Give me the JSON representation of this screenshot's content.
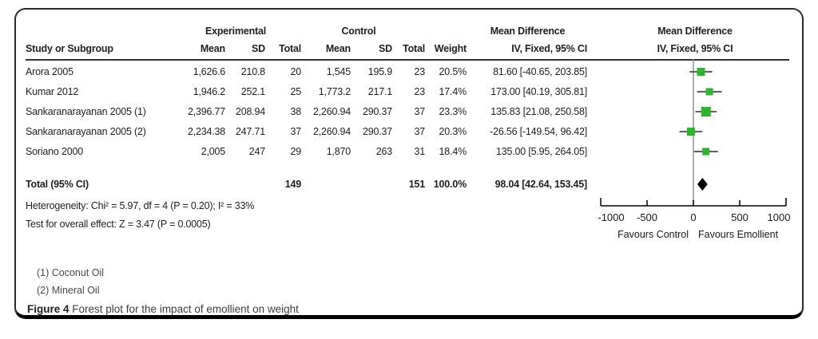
{
  "figure": {
    "caption_label": "Figure 4",
    "caption_text": " Forest plot for the impact of emollient on weight"
  },
  "table": {
    "group_headers": {
      "experimental": "Experimental",
      "control": "Control",
      "md_table": "Mean Difference",
      "md_plot": "Mean Difference"
    },
    "col_headers": {
      "study": "Study or Subgroup",
      "exp_mean": "Mean",
      "exp_sd": "SD",
      "exp_total": "Total",
      "ctrl_mean": "Mean",
      "ctrl_sd": "SD",
      "ctrl_total": "Total",
      "weight": "Weight",
      "iv_table": "IV, Fixed, 95% CI",
      "iv_plot": "IV, Fixed, 95% CI"
    },
    "rows": [
      {
        "study": "Arora 2005",
        "exp_mean": "1,626.6",
        "exp_sd": "210.8",
        "exp_total": "20",
        "ctrl_mean": "1,545",
        "ctrl_sd": "195.9",
        "ctrl_total": "23",
        "weight": "20.5%",
        "iv": "81.60 [-40.65, 203.85]"
      },
      {
        "study": "Kumar 2012",
        "exp_mean": "1,946.2",
        "exp_sd": "252.1",
        "exp_total": "25",
        "ctrl_mean": "1,773.2",
        "ctrl_sd": "217.1",
        "ctrl_total": "23",
        "weight": "17.4%",
        "iv": "173.00 [40.19, 305.81]"
      },
      {
        "study": "Sankaranarayanan 2005 (1)",
        "exp_mean": "2,396.77",
        "exp_sd": "208.94",
        "exp_total": "38",
        "ctrl_mean": "2,260.94",
        "ctrl_sd": "290.37",
        "ctrl_total": "37",
        "weight": "23.3%",
        "iv": "135.83 [21.08, 250.58]"
      },
      {
        "study": "Sankaranarayanan 2005 (2)",
        "exp_mean": "2,234.38",
        "exp_sd": "247.71",
        "exp_total": "37",
        "ctrl_mean": "2,260.94",
        "ctrl_sd": "290.37",
        "ctrl_total": "37",
        "weight": "20.3%",
        "iv": "-26.56 [-149.54, 96.42]"
      },
      {
        "study": "Soriano 2000",
        "exp_mean": "2,005",
        "exp_sd": "247",
        "exp_total": "29",
        "ctrl_mean": "1,870",
        "ctrl_sd": "263",
        "ctrl_total": "31",
        "weight": "18.4%",
        "iv": "135.00 [5.95, 264.05]"
      }
    ],
    "total_row": {
      "label": "Total (95% CI)",
      "exp_total": "149",
      "ctrl_total": "151",
      "weight": "100.0%",
      "iv": "98.04 [42.64, 153.45]"
    },
    "heterogeneity": "Heterogeneity: Chi² = 5.97, df = 4 (P = 0.20); I² = 33%",
    "overall_effect": "Test for overall effect: Z = 3.47 (P = 0.0005)",
    "footnotes": [
      "(1) Coconut Oil",
      "(2) Mineral Oil"
    ]
  },
  "chart_data": {
    "type": "forest",
    "title": "Forest plot for the impact of emollient on weight",
    "effect_measure": "Mean Difference, IV, Fixed, 95% CI",
    "studies": [
      {
        "name": "Arora 2005",
        "effect": 81.6,
        "ci_low": -40.65,
        "ci_high": 203.85,
        "weight_pct": 20.5
      },
      {
        "name": "Kumar 2012",
        "effect": 173.0,
        "ci_low": 40.19,
        "ci_high": 305.81,
        "weight_pct": 17.4
      },
      {
        "name": "Sankaranarayanan 2005 (1)",
        "effect": 135.83,
        "ci_low": 21.08,
        "ci_high": 250.58,
        "weight_pct": 23.3
      },
      {
        "name": "Sankaranarayanan 2005 (2)",
        "effect": -26.56,
        "ci_low": -149.54,
        "ci_high": 96.42,
        "weight_pct": 20.3
      },
      {
        "name": "Soriano 2000",
        "effect": 135.0,
        "ci_low": 5.95,
        "ci_high": 264.05,
        "weight_pct": 18.4
      }
    ],
    "total": {
      "effect": 98.04,
      "ci_low": 42.64,
      "ci_high": 153.45,
      "weight_pct": 100.0
    },
    "axis": {
      "xlim": [
        -1000,
        1000
      ],
      "ticks": [
        -1000,
        -500,
        0,
        500,
        1000
      ],
      "label_left": "Favours Control",
      "label_right": "Favours Emollient"
    },
    "colors": {
      "marker": "#2db52d",
      "diamond": "#000000",
      "ci_line": "#4a4a4a",
      "zero_line": "#8c8c8c",
      "axis": "#000000"
    }
  }
}
